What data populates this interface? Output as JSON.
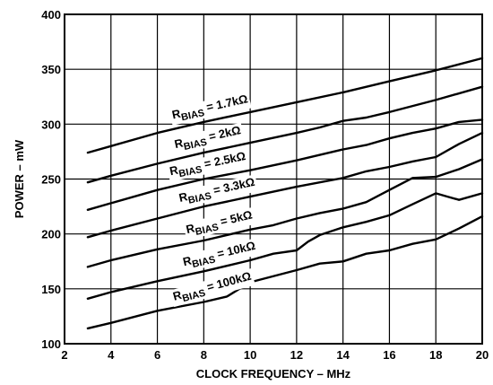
{
  "chart_data": {
    "type": "line",
    "title": "",
    "xlabel": "CLOCK FREQUENCY – MHz",
    "ylabel": "POWER – mW",
    "xlim": [
      2,
      20
    ],
    "ylim": [
      100,
      400
    ],
    "xticks": [
      2,
      4,
      6,
      8,
      10,
      12,
      14,
      16,
      18,
      20
    ],
    "yticks": [
      100,
      150,
      200,
      250,
      300,
      350,
      400
    ],
    "grid": true,
    "legend": "inline labels",
    "series": [
      {
        "name": "RBIAS = 1.7kΩ",
        "label": {
          "base": "R",
          "sub": "BIAS",
          "rest": " = 1.7kΩ"
        },
        "x": [
          3,
          4,
          6,
          8,
          10,
          12,
          14,
          16,
          18,
          20
        ],
        "values": [
          274,
          280,
          292,
          302,
          311,
          320,
          329,
          339,
          349,
          360
        ]
      },
      {
        "name": "RBIAS = 2kΩ",
        "label": {
          "base": "R",
          "sub": "BIAS",
          "rest": " = 2kΩ"
        },
        "x": [
          3,
          4,
          6,
          8,
          10,
          12,
          13,
          14,
          15,
          16,
          18,
          20
        ],
        "values": [
          247,
          253,
          264,
          274,
          283,
          292,
          297,
          303,
          306,
          311,
          322,
          334
        ]
      },
      {
        "name": "RBIAS = 2.5kΩ",
        "label": {
          "base": "R",
          "sub": "BIAS",
          "rest": " = 2.5kΩ"
        },
        "x": [
          3,
          4,
          6,
          8,
          10,
          12,
          14,
          15,
          16,
          17,
          18,
          19,
          20
        ],
        "values": [
          222,
          228,
          240,
          250,
          258,
          267,
          277,
          281,
          287,
          292,
          296,
          302,
          304
        ]
      },
      {
        "name": "RBIAS = 3.3kΩ",
        "label": {
          "base": "R",
          "sub": "BIAS",
          "rest": " = 3.3kΩ"
        },
        "x": [
          3,
          4,
          6,
          8,
          10,
          12,
          14,
          15,
          16,
          17,
          18,
          19,
          20
        ],
        "values": [
          197,
          203,
          214,
          225,
          234,
          243,
          251,
          257,
          261,
          266,
          270,
          282,
          292
        ]
      },
      {
        "name": "RBIAS = 5kΩ",
        "label": {
          "base": "R",
          "sub": "BIAS",
          "rest": " = 5kΩ"
        },
        "x": [
          3,
          4,
          6,
          8,
          10,
          11,
          12,
          13,
          14,
          15,
          16,
          17,
          18,
          19,
          20
        ],
        "values": [
          170,
          176,
          186,
          194,
          204,
          208,
          214,
          219,
          223,
          229,
          240,
          251,
          252,
          259,
          268
        ]
      },
      {
        "name": "RBIAS = 10kΩ",
        "label": {
          "base": "R",
          "sub": "BIAS",
          "rest": " = 10kΩ"
        },
        "x": [
          3,
          4,
          6,
          8,
          10,
          11,
          12,
          12.5,
          13,
          14,
          15,
          16,
          17,
          18,
          18.5,
          19,
          20
        ],
        "values": [
          141,
          147,
          157,
          166,
          176,
          182,
          185,
          193,
          199,
          206,
          211,
          217,
          227,
          237,
          234,
          231,
          237
        ]
      },
      {
        "name": "RBIAS = 100kΩ",
        "label": {
          "base": "R",
          "sub": "BIAS",
          "rest": " = 100kΩ"
        },
        "x": [
          3,
          4,
          6,
          8,
          9,
          10,
          12,
          13,
          14,
          15,
          16,
          17,
          18,
          19,
          20
        ],
        "values": [
          114,
          119,
          130,
          138,
          143,
          156,
          167,
          173,
          175,
          182,
          185,
          191,
          195,
          205,
          216
        ]
      }
    ]
  }
}
